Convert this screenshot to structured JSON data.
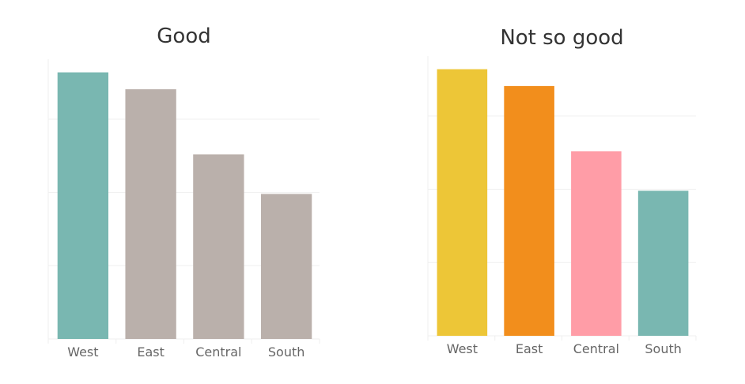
{
  "chart_data": [
    {
      "type": "bar",
      "title": "Good",
      "categories": [
        "West",
        "East",
        "Central",
        "South"
      ],
      "values": [
        3.64,
        3.41,
        2.52,
        1.98
      ],
      "colors": [
        "#79b7b1",
        "#bab0ab",
        "#bab0ab",
        "#bab0ab"
      ],
      "xlabel": "",
      "ylabel": "",
      "ylim": [
        0,
        3.82
      ],
      "grid": true,
      "yticks": [
        1,
        2,
        3
      ]
    },
    {
      "type": "bar",
      "title": "Not so good",
      "categories": [
        "West",
        "East",
        "Central",
        "South"
      ],
      "values": [
        3.64,
        3.41,
        2.52,
        1.98
      ],
      "colors": [
        "#edc637",
        "#f28e1c",
        "#ff9da7",
        "#79b7b1"
      ],
      "xlabel": "",
      "ylabel": "",
      "ylim": [
        0,
        3.82
      ],
      "grid": true,
      "yticks": [
        1,
        2,
        3
      ]
    }
  ]
}
